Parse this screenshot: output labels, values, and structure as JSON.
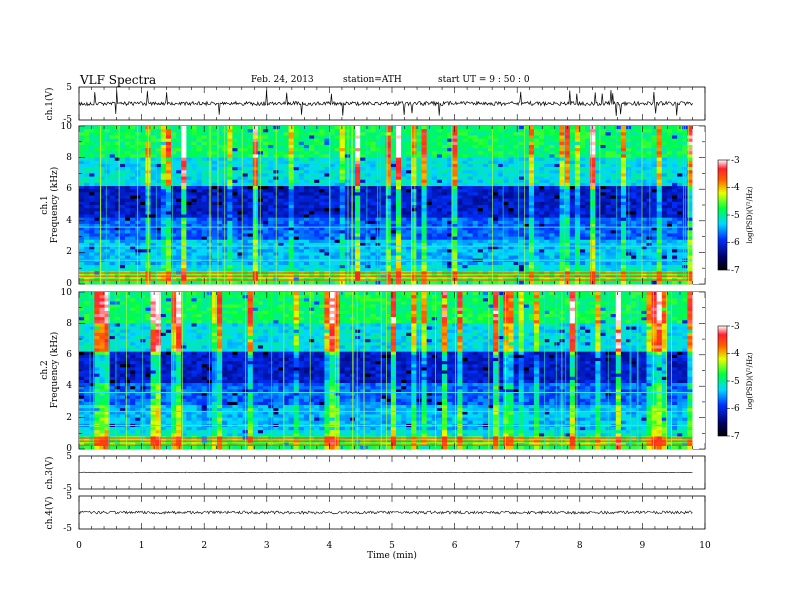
{
  "header": {
    "title": "VLF  Spectra",
    "date": "Feb. 24, 2013",
    "station": "station=ATH",
    "start_ut": "start  UT =   9 : 50 : 0"
  },
  "colors": {
    "spectrogram_low": "#000066",
    "spectrogram_mid": "#00e0ff",
    "spectrogram_high": "#ff2000",
    "trace": "#000000"
  },
  "chart_data": [
    {
      "type": "line",
      "panel": "ch1-waveform",
      "ylabel": "ch.1(V)",
      "ylim": [
        -5,
        5
      ],
      "yticks": [
        "5",
        "-5"
      ],
      "xlim": [
        0,
        10
      ],
      "x_covered": [
        0,
        9.8
      ],
      "baseline_value": 0
    },
    {
      "type": "heatmap",
      "panel": "ch1-spectrogram",
      "ylabel_channel": "ch.1",
      "ylabel": "Frequency (kHz)",
      "ylim": [
        0,
        10
      ],
      "yticks": [
        "0",
        "2",
        "4",
        "6",
        "8",
        "10"
      ],
      "xlim": [
        0,
        10
      ],
      "x_covered": [
        0,
        9.8
      ],
      "colorbar": {
        "label": "log(PSD)(V²/Hz)",
        "range": [
          -7,
          -3
        ],
        "ticks": [
          "-3",
          "-4",
          "-5",
          "-6",
          "-7"
        ]
      }
    },
    {
      "type": "heatmap",
      "panel": "ch2-spectrogram",
      "ylabel_channel": "ch.2",
      "ylabel": "Frequency (kHz)",
      "ylim": [
        0,
        10
      ],
      "yticks": [
        "0",
        "2",
        "4",
        "6",
        "8",
        "10"
      ],
      "xlim": [
        0,
        10
      ],
      "x_covered": [
        0,
        9.8
      ],
      "colorbar": {
        "label": "log(PSD)(V²/Hz)",
        "range": [
          -7,
          -3
        ],
        "ticks": [
          "-3",
          "-4",
          "-5",
          "-6",
          "-7"
        ]
      }
    },
    {
      "type": "line",
      "panel": "ch3-waveform",
      "ylabel": "ch.3(V)",
      "ylim": [
        -5,
        5
      ],
      "yticks": [
        "5",
        "-5"
      ],
      "xlim": [
        0,
        10
      ],
      "x_covered": [
        0,
        9.8
      ],
      "baseline_value": 0
    },
    {
      "type": "line",
      "panel": "ch4-waveform",
      "ylabel": "ch.4(V)",
      "ylim": [
        -5,
        5
      ],
      "yticks": [
        "5",
        "-5"
      ],
      "xlim": [
        0,
        10
      ],
      "x_covered": [
        0,
        9.8
      ],
      "baseline_value": 0
    }
  ],
  "xaxis": {
    "label": "Time  (min)",
    "ticks": [
      "0",
      "1",
      "2",
      "3",
      "4",
      "5",
      "6",
      "7",
      "8",
      "9",
      "10"
    ]
  }
}
